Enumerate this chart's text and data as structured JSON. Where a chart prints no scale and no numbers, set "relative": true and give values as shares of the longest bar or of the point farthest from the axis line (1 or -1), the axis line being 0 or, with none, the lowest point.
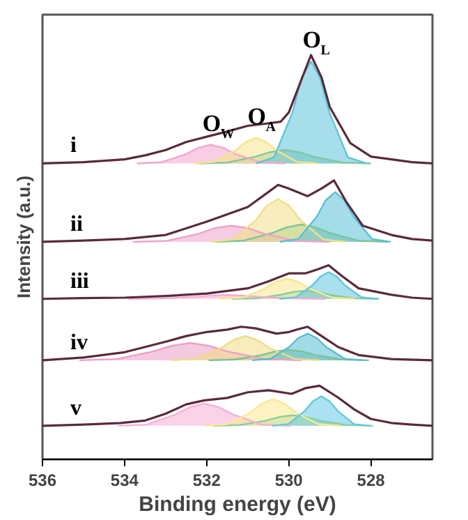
{
  "chart_data": {
    "type": "line",
    "relative": true,
    "xlabel": "Binding energy (eV)",
    "ylabel": "Intensity (a.u.)",
    "xlim": [
      536,
      526.5
    ],
    "xticks": [
      536,
      534,
      532,
      530,
      528
    ],
    "series": [
      {
        "type": "area",
        "color": "#7fc99a",
        "x": [
          532.2,
          531.5,
          530.8,
          530.45,
          530.1,
          529.75,
          529.4,
          528.7,
          528.0
        ],
        "values": [
          0.732,
          0.734,
          0.749,
          0.76,
          0.765,
          0.76,
          0.749,
          0.734,
          0.732
        ]
      },
      {
        "type": "area",
        "name": "O$_{W}$",
        "color": "#f2a6d0",
        "x": [
          533.7,
          533.1,
          532.5,
          532.2,
          531.9,
          531.6,
          531.3,
          530.7,
          530.1
        ],
        "values": [
          0.732,
          0.735,
          0.755,
          0.771,
          0.778,
          0.771,
          0.755,
          0.735,
          0.732
        ]
      },
      {
        "type": "area",
        "name": "O$_{A}$",
        "color": "#f7e38a",
        "x": [
          532.3,
          531.8,
          531.3,
          531.05,
          530.8,
          530.55,
          530.3,
          529.8,
          529.3
        ],
        "values": [
          0.732,
          0.736,
          0.764,
          0.785,
          0.795,
          0.785,
          0.764,
          0.736,
          0.732
        ]
      },
      {
        "type": "area",
        "name": "O$_{L}$",
        "color": "#5fc3dc",
        "x": [
          530.8,
          530.36,
          529.91,
          529.69,
          529.46,
          529.24,
          529.01,
          528.56,
          528.1
        ],
        "values": [
          0.732,
          0.747,
          0.858,
          0.944,
          0.984,
          0.944,
          0.858,
          0.747,
          0.732
        ]
      },
      {
        "name": "i",
        "color": "#5a2a3a",
        "x": [
          536,
          535,
          534,
          533.5,
          533,
          532.5,
          532,
          531.5,
          531,
          530.5,
          530.2,
          530,
          529.7,
          529.46,
          529.2,
          529,
          528.5,
          528,
          527,
          526.5
        ],
        "values": [
          0.732,
          0.735,
          0.742,
          0.752,
          0.765,
          0.785,
          0.798,
          0.811,
          0.825,
          0.831,
          0.835,
          0.858,
          0.937,
          1.0,
          0.944,
          0.871,
          0.782,
          0.749,
          0.735,
          0.732
        ]
      },
      {
        "type": "area",
        "color": "#7bc696",
        "x": [
          531.8,
          531.1,
          530.4,
          530.05,
          529.7,
          529.35,
          529.0,
          528.3,
          527.6
        ],
        "values": [
          0.538,
          0.541,
          0.56,
          0.574,
          0.581,
          0.574,
          0.56,
          0.541,
          0.538
        ]
      },
      {
        "type": "area",
        "color": "#eea2cc",
        "x": [
          533.8,
          533.0,
          532.2,
          531.8,
          531.4,
          531.0,
          530.6,
          529.8,
          529.0
        ],
        "values": [
          0.538,
          0.54,
          0.558,
          0.572,
          0.578,
          0.572,
          0.558,
          0.54,
          0.538
        ]
      },
      {
        "type": "area",
        "color": "#f3df86",
        "x": [
          531.91,
          531.36,
          530.81,
          530.54,
          530.26,
          529.99,
          529.71,
          529.16,
          528.61
        ],
        "values": [
          0.538,
          0.544,
          0.591,
          0.627,
          0.644,
          0.627,
          0.591,
          0.544,
          0.538
        ]
      },
      {
        "type": "area",
        "color": "#5bbfd8",
        "x": [
          530.22,
          529.77,
          529.32,
          529.1,
          528.87,
          528.65,
          528.42,
          527.97,
          527.52
        ],
        "values": [
          0.538,
          0.545,
          0.6,
          0.641,
          0.661,
          0.641,
          0.6,
          0.545,
          0.538
        ]
      },
      {
        "name": "ii",
        "color": "#5a2a3a",
        "x": [
          536,
          535,
          534,
          533,
          532,
          531,
          530.5,
          530.26,
          530,
          529.54,
          529.2,
          528.9,
          528.6,
          528.2,
          527.5,
          527,
          526.5
        ],
        "values": [
          0.538,
          0.541,
          0.545,
          0.555,
          0.588,
          0.624,
          0.661,
          0.679,
          0.67,
          0.651,
          0.67,
          0.69,
          0.637,
          0.578,
          0.555,
          0.545,
          0.541
        ]
      },
      {
        "type": "area",
        "color": "#83cc9e",
        "x": [
          531.4,
          530.8,
          530.2,
          529.9,
          529.6,
          529.3,
          529.0,
          528.4,
          527.8
        ],
        "values": [
          0.397,
          0.398,
          0.407,
          0.414,
          0.417,
          0.414,
          0.407,
          0.398,
          0.397
        ]
      },
      {
        "type": "area",
        "color": "#f5aad4",
        "x": [
          533.9,
          533.1,
          532.3,
          531.9,
          531.5,
          531.1,
          530.7,
          529.9,
          529.1
        ],
        "values": [
          0.397,
          0.398,
          0.402,
          0.405,
          0.407,
          0.405,
          0.402,
          0.398,
          0.397
        ]
      },
      {
        "type": "area",
        "color": "#fae68e",
        "x": [
          531.69,
          531.14,
          530.59,
          530.32,
          530.04,
          529.77,
          529.49,
          528.94,
          528.39
        ],
        "values": [
          0.397,
          0.4,
          0.422,
          0.439,
          0.447,
          0.439,
          0.422,
          0.4,
          0.397
        ]
      },
      {
        "type": "area",
        "color": "#63c6e0",
        "x": [
          530.23,
          529.83,
          529.43,
          529.23,
          529.03,
          528.83,
          528.63,
          528.23,
          527.83
        ],
        "values": [
          0.397,
          0.401,
          0.43,
          0.452,
          0.463,
          0.452,
          0.43,
          0.401,
          0.397
        ]
      },
      {
        "name": "iii",
        "color": "#5a2a3a",
        "x": [
          536,
          535,
          534,
          533,
          532,
          531,
          530.5,
          530,
          529.6,
          529.3,
          529.03,
          528.7,
          528.3,
          527.5,
          527,
          526.5
        ],
        "values": [
          0.397,
          0.399,
          0.4,
          0.404,
          0.41,
          0.423,
          0.44,
          0.46,
          0.46,
          0.47,
          0.48,
          0.453,
          0.423,
          0.407,
          0.4,
          0.397
        ]
      },
      {
        "type": "area",
        "color": "#78c393",
        "x": [
          531.95,
          531.3,
          530.65,
          530.33,
          530.0,
          529.68,
          529.35,
          528.7,
          528.05
        ],
        "values": [
          0.245,
          0.247,
          0.258,
          0.267,
          0.271,
          0.267,
          0.258,
          0.247,
          0.245
        ]
      },
      {
        "type": "area",
        "color": "#eb9fc9",
        "x": [
          535.1,
          534.2,
          533.3,
          532.85,
          532.4,
          531.95,
          531.5,
          530.6,
          529.7
        ],
        "values": [
          0.245,
          0.248,
          0.267,
          0.281,
          0.288,
          0.281,
          0.267,
          0.248,
          0.245
        ]
      },
      {
        "type": "area",
        "color": "#f0dc83",
        "x": [
          532.86,
          532.26,
          531.66,
          531.36,
          531.06,
          530.76,
          530.46,
          529.86,
          529.26
        ],
        "values": [
          0.245,
          0.249,
          0.275,
          0.295,
          0.305,
          0.295,
          0.275,
          0.249,
          0.245
        ]
      },
      {
        "type": "area",
        "color": "#58bcd5",
        "x": [
          530.89,
          530.44,
          529.99,
          529.77,
          529.54,
          529.32,
          529.09,
          528.64,
          528.19
        ],
        "values": [
          0.245,
          0.249,
          0.278,
          0.3,
          0.311,
          0.3,
          0.278,
          0.249,
          0.245
        ]
      },
      {
        "name": "iv",
        "color": "#5a2a3a",
        "x": [
          536,
          535,
          534,
          533.5,
          533,
          532.5,
          532,
          531.5,
          531.16,
          530.8,
          530.3,
          530,
          529.8,
          529.54,
          529.2,
          528.8,
          528.3,
          527.5,
          526.5
        ],
        "values": [
          0.245,
          0.252,
          0.265,
          0.278,
          0.291,
          0.305,
          0.315,
          0.321,
          0.328,
          0.324,
          0.311,
          0.315,
          0.321,
          0.328,
          0.305,
          0.278,
          0.258,
          0.248,
          0.245
        ]
      },
      {
        "type": "area",
        "color": "#86cfa1",
        "x": [
          531.85,
          531.2,
          530.55,
          530.23,
          529.9,
          529.58,
          529.25,
          528.6,
          527.95
        ],
        "values": [
          0.083,
          0.085,
          0.096,
          0.105,
          0.109,
          0.105,
          0.096,
          0.085,
          0.083
        ]
      },
      {
        "type": "area",
        "color": "#f8aed7",
        "x": [
          534.16,
          533.46,
          532.76,
          532.41,
          532.06,
          531.71,
          531.36,
          530.66,
          529.96
        ],
        "values": [
          0.083,
          0.086,
          0.111,
          0.129,
          0.138,
          0.129,
          0.111,
          0.086,
          0.083
        ]
      },
      {
        "type": "area",
        "color": "#fde992",
        "x": [
          532.03,
          531.48,
          530.93,
          530.66,
          530.38,
          530.11,
          529.83,
          529.28,
          528.73
        ],
        "values": [
          0.083,
          0.087,
          0.116,
          0.138,
          0.149,
          0.138,
          0.116,
          0.087,
          0.083
        ]
      },
      {
        "type": "area",
        "color": "#66c9e3",
        "x": [
          530.41,
          530.01,
          529.61,
          529.41,
          529.21,
          529.01,
          528.81,
          528.41,
          528.01
        ],
        "values": [
          0.083,
          0.087,
          0.12,
          0.144,
          0.156,
          0.144,
          0.12,
          0.087,
          0.083
        ]
      },
      {
        "name": "v",
        "color": "#5a2a3a",
        "x": [
          536,
          535,
          534.1,
          533.5,
          533,
          532.5,
          532.06,
          531.5,
          531,
          530.49,
          529.93,
          529.6,
          529.25,
          528.8,
          528.4,
          528,
          527.5,
          527,
          526.5
        ],
        "values": [
          0.083,
          0.086,
          0.09,
          0.096,
          0.113,
          0.136,
          0.146,
          0.152,
          0.166,
          0.171,
          0.162,
          0.176,
          0.182,
          0.153,
          0.123,
          0.1,
          0.09,
          0.086,
          0.083
        ]
      }
    ]
  }
}
